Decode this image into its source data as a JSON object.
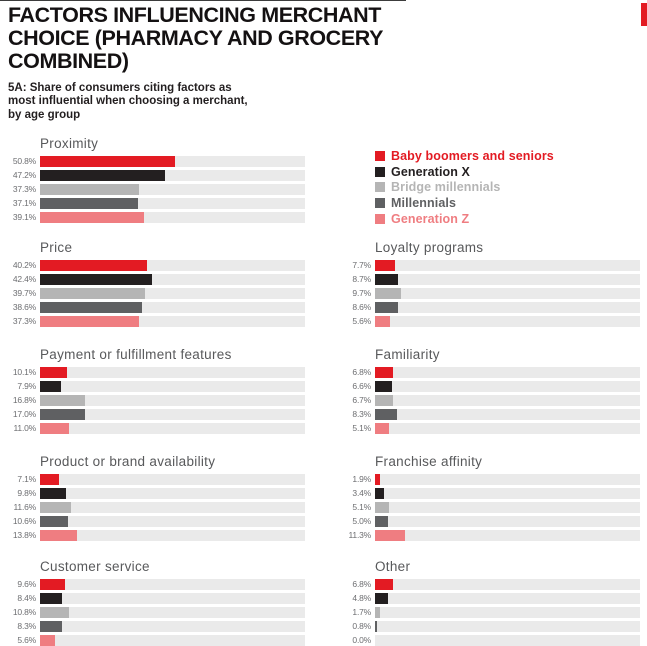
{
  "header": {
    "title": "FACTORS INFLUENCING MERCHANT\nCHOICE (PHARMACY AND GROCERY\nCOMBINED)",
    "caption": "5A: Share of consumers citing factors as\nmost influential when choosing a merchant,\nby age group"
  },
  "legend": {
    "items": [
      {
        "label": "Baby boomers and seniors",
        "color": "#e31b23"
      },
      {
        "label": "Generation X",
        "color": "#231f20"
      },
      {
        "label": "Bridge millennials",
        "color": "#b5b5b5"
      },
      {
        "label": "Millennials",
        "color": "#5f6062"
      },
      {
        "label": "Generation Z",
        "color": "#ef7d81"
      }
    ]
  },
  "colors": {
    "track": "#eaeaea",
    "chart_title": "#58595b",
    "value_label": "#6d6e71",
    "accent_red": "#e31b23"
  },
  "chart_data": [
    {
      "type": "bar",
      "title": "Proximity",
      "categories": [
        "Baby boomers and seniors",
        "Generation X",
        "Bridge millennials",
        "Millennials",
        "Generation Z"
      ],
      "values": [
        50.8,
        47.2,
        37.3,
        37.1,
        39.1
      ],
      "value_labels": [
        "50.8%",
        "47.2%",
        "37.3%",
        "37.1%",
        "39.1%"
      ],
      "xlim": [
        0,
        100
      ],
      "orientation": "horizontal",
      "grid": false,
      "legend_position": "right-of-first-chart"
    },
    {
      "type": "bar",
      "title": "Price",
      "categories": [
        "Baby boomers and seniors",
        "Generation X",
        "Bridge millennials",
        "Millennials",
        "Generation Z"
      ],
      "values": [
        40.2,
        42.4,
        39.7,
        38.6,
        37.3
      ],
      "value_labels": [
        "40.2%",
        "42.4%",
        "39.7%",
        "38.6%",
        "37.3%"
      ],
      "xlim": [
        0,
        100
      ],
      "orientation": "horizontal",
      "grid": false
    },
    {
      "type": "bar",
      "title": "Loyalty programs",
      "categories": [
        "Baby boomers and seniors",
        "Generation X",
        "Bridge millennials",
        "Millennials",
        "Generation Z"
      ],
      "values": [
        7.7,
        8.7,
        9.7,
        8.6,
        5.6
      ],
      "value_labels": [
        "7.7%",
        "8.7%",
        "9.7%",
        "8.6%",
        "5.6%"
      ],
      "xlim": [
        0,
        100
      ],
      "orientation": "horizontal",
      "grid": false
    },
    {
      "type": "bar",
      "title": "Payment or fulfillment features",
      "categories": [
        "Baby boomers and seniors",
        "Generation X",
        "Bridge millennials",
        "Millennials",
        "Generation Z"
      ],
      "values": [
        10.1,
        7.9,
        16.8,
        17.0,
        11.0
      ],
      "value_labels": [
        "10.1%",
        "7.9%",
        "16.8%",
        "17.0%",
        "11.0%"
      ],
      "xlim": [
        0,
        100
      ],
      "orientation": "horizontal",
      "grid": false
    },
    {
      "type": "bar",
      "title": "Familiarity",
      "categories": [
        "Baby boomers and seniors",
        "Generation X",
        "Bridge millennials",
        "Millennials",
        "Generation Z"
      ],
      "values": [
        6.8,
        6.6,
        6.7,
        8.3,
        5.1
      ],
      "value_labels": [
        "6.8%",
        "6.6%",
        "6.7%",
        "8.3%",
        "5.1%"
      ],
      "xlim": [
        0,
        100
      ],
      "orientation": "horizontal",
      "grid": false
    },
    {
      "type": "bar",
      "title": "Product or brand availability",
      "categories": [
        "Baby boomers and seniors",
        "Generation X",
        "Bridge millennials",
        "Millennials",
        "Generation Z"
      ],
      "values": [
        7.1,
        9.8,
        11.6,
        10.6,
        13.8
      ],
      "value_labels": [
        "7.1%",
        "9.8%",
        "11.6%",
        "10.6%",
        "13.8%"
      ],
      "xlim": [
        0,
        100
      ],
      "orientation": "horizontal",
      "grid": false
    },
    {
      "type": "bar",
      "title": "Franchise affinity",
      "categories": [
        "Baby boomers and seniors",
        "Generation X",
        "Bridge millennials",
        "Millennials",
        "Generation Z"
      ],
      "values": [
        1.9,
        3.4,
        5.1,
        5.0,
        11.3
      ],
      "value_labels": [
        "1.9%",
        "3.4%",
        "5.1%",
        "5.0%",
        "11.3%"
      ],
      "xlim": [
        0,
        100
      ],
      "orientation": "horizontal",
      "grid": false
    },
    {
      "type": "bar",
      "title": "Customer service",
      "categories": [
        "Baby boomers and seniors",
        "Generation X",
        "Bridge millennials",
        "Millennials",
        "Generation Z"
      ],
      "values": [
        9.6,
        8.4,
        10.8,
        8.3,
        5.6
      ],
      "value_labels": [
        "9.6%",
        "8.4%",
        "10.8%",
        "8.3%",
        "5.6%"
      ],
      "xlim": [
        0,
        100
      ],
      "orientation": "horizontal",
      "grid": false
    },
    {
      "type": "bar",
      "title": "Other",
      "categories": [
        "Baby boomers and seniors",
        "Generation X",
        "Bridge millennials",
        "Millennials",
        "Generation Z"
      ],
      "values": [
        6.8,
        4.8,
        1.7,
        0.8,
        0.0
      ],
      "value_labels": [
        "6.8%",
        "4.8%",
        "1.7%",
        "0.8%",
        "0.0%"
      ],
      "xlim": [
        0,
        100
      ],
      "orientation": "horizontal",
      "grid": false
    }
  ]
}
